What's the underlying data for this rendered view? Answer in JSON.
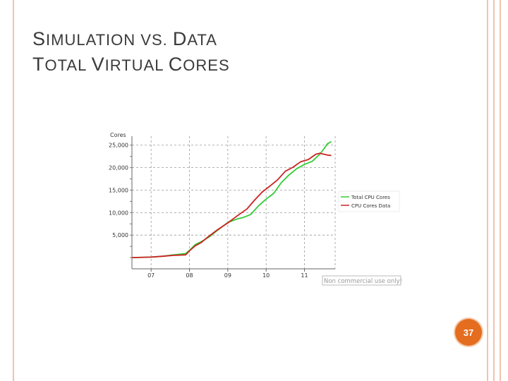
{
  "slide": {
    "title_line1": {
      "cap1": "S",
      "rest1": "IMULATION VS. ",
      "cap2": "D",
      "rest2": "ATA"
    },
    "title_line2": {
      "cap1": "T",
      "rest1": "OTAL ",
      "cap2": "V",
      "rest2": "IRTUAL ",
      "cap3": "C",
      "rest3": "ORES"
    },
    "page_number": "37",
    "accent_color": "#e46d1f",
    "stripe_color": "#f3c2ab"
  },
  "chart_data": {
    "type": "line",
    "ylabel": "Cores",
    "ylim": [
      -2500,
      27000
    ],
    "yticks": [
      5000,
      10000,
      15000,
      20000,
      25000
    ],
    "ytick_labels": [
      "5,000",
      "10,000",
      "15,000",
      "20,000",
      "25,000"
    ],
    "xlim": [
      2006.5,
      2011.8
    ],
    "xticks": [
      2007,
      2008,
      2009,
      2010,
      2011
    ],
    "xtick_labels": [
      "07",
      "08",
      "09",
      "10",
      "11"
    ],
    "grid": true,
    "legend_position": "right",
    "watermark": "Non commercial use only!",
    "series": [
      {
        "name": "Total CPU Cores",
        "color": "#33cc33",
        "x": [
          2006.5,
          2007.0,
          2007.3,
          2007.6,
          2007.9,
          2008.0,
          2008.15,
          2008.3,
          2008.5,
          2008.75,
          2009.0,
          2009.25,
          2009.4,
          2009.6,
          2009.8,
          2010.0,
          2010.2,
          2010.4,
          2010.6,
          2010.8,
          2011.0,
          2011.2,
          2011.4,
          2011.5,
          2011.6,
          2011.7
        ],
        "y": [
          0,
          100,
          300,
          600,
          900,
          1600,
          2900,
          3500,
          4500,
          6200,
          7800,
          8600,
          8900,
          9600,
          11500,
          13000,
          14300,
          16700,
          18400,
          19800,
          20700,
          21400,
          23000,
          24100,
          25300,
          25800
        ]
      },
      {
        "name": "CPU Cores Data",
        "color": "#cc2222",
        "x": [
          2006.5,
          2007.0,
          2007.3,
          2007.6,
          2007.9,
          2008.0,
          2008.15,
          2008.3,
          2008.5,
          2008.75,
          2009.0,
          2009.25,
          2009.5,
          2009.7,
          2009.9,
          2010.1,
          2010.3,
          2010.5,
          2010.7,
          2010.9,
          2011.1,
          2011.3,
          2011.4,
          2011.5,
          2011.6,
          2011.7
        ],
        "y": [
          0,
          100,
          300,
          500,
          600,
          1500,
          2600,
          3300,
          4700,
          6300,
          7700,
          9300,
          10800,
          12800,
          14600,
          15900,
          17300,
          19200,
          20100,
          21300,
          21800,
          23000,
          23200,
          23000,
          22800,
          22700
        ]
      }
    ]
  }
}
